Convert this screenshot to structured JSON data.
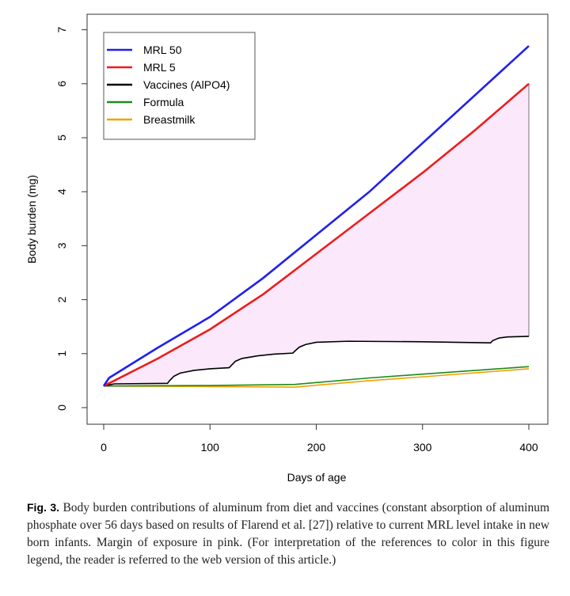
{
  "chart_data": {
    "type": "line",
    "title": "",
    "xlabel": "Days of age",
    "ylabel": "Body burden (mg)",
    "xlim": [
      0,
      400
    ],
    "ylim": [
      0,
      7
    ],
    "xticks": [
      0,
      100,
      200,
      300,
      400
    ],
    "yticks": [
      0,
      1,
      2,
      3,
      4,
      5,
      6,
      7
    ],
    "legend_position": "top-left",
    "series": [
      {
        "name": "MRL 50",
        "color": "#2020ee",
        "x": [
          0,
          5,
          50,
          100,
          150,
          200,
          250,
          300,
          350,
          400
        ],
        "y": [
          0.4,
          0.55,
          1.1,
          1.68,
          2.4,
          3.2,
          4.0,
          4.9,
          5.8,
          6.7
        ]
      },
      {
        "name": "MRL 5",
        "color": "#ee1c1c",
        "x": [
          0,
          50,
          100,
          150,
          200,
          250,
          300,
          350,
          400
        ],
        "y": [
          0.4,
          0.9,
          1.45,
          2.1,
          2.85,
          3.6,
          4.35,
          5.15,
          6.0
        ]
      },
      {
        "name": "Vaccines (AlPO4)",
        "color": "#000000",
        "x": [
          0,
          10,
          60,
          62,
          66,
          72,
          85,
          100,
          118,
          120,
          124,
          130,
          145,
          160,
          178,
          180,
          184,
          190,
          200,
          230,
          300,
          364,
          366,
          372,
          380,
          400
        ],
        "y": [
          0.4,
          0.44,
          0.45,
          0.5,
          0.58,
          0.64,
          0.69,
          0.72,
          0.74,
          0.78,
          0.86,
          0.91,
          0.96,
          0.99,
          1.01,
          1.05,
          1.12,
          1.17,
          1.21,
          1.23,
          1.22,
          1.2,
          1.24,
          1.29,
          1.31,
          1.32
        ]
      },
      {
        "name": "Formula",
        "color": "#1a8c1a",
        "x": [
          0,
          100,
          180,
          250,
          300,
          400
        ],
        "y": [
          0.4,
          0.41,
          0.43,
          0.55,
          0.62,
          0.76
        ]
      },
      {
        "name": "Breastmilk",
        "color": "#f5a000",
        "x": [
          0,
          100,
          180,
          250,
          300,
          400
        ],
        "y": [
          0.4,
          0.39,
          0.38,
          0.5,
          0.57,
          0.72
        ]
      }
    ],
    "shaded_region": {
      "between": [
        "MRL 5",
        "Vaccines (AlPO4)"
      ],
      "color": "#fbe8fb",
      "meaning": "Margin of exposure"
    }
  },
  "caption": {
    "label": "Fig. 3.",
    "text": "Body burden contributions of aluminum from diet and vaccines (constant absorption of aluminum phosphate over 56 days based on results of Flarend et al. [27]) relative to current MRL level intake in new born infants. Margin of exposure in pink. (For interpretation of the references to color in this figure legend, the reader is referred to the web version of this article.)"
  }
}
